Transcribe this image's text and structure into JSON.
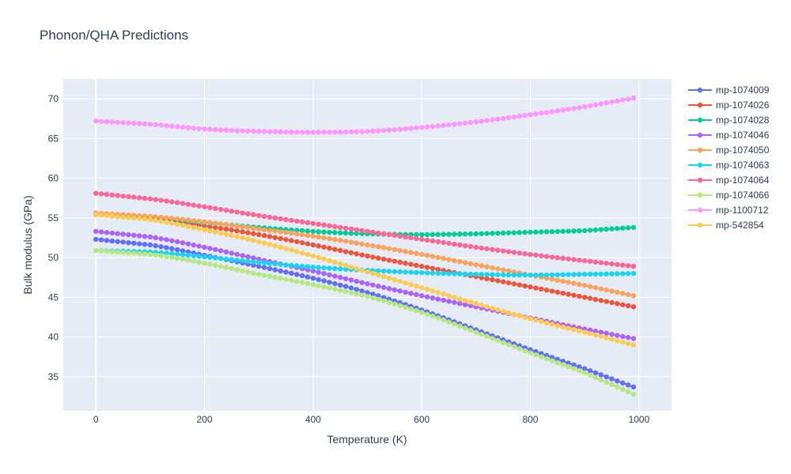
{
  "chart_data": {
    "type": "line",
    "title": "Phonon/QHA Predictions",
    "xlabel": "Temperature (K)",
    "ylabel": "Bulk modulus (GPa)",
    "xlim": [
      -60,
      1060
    ],
    "ylim": [
      30.7,
      72.5
    ],
    "xticks": [
      0,
      200,
      400,
      600,
      800,
      1000
    ],
    "yticks": [
      35,
      40,
      45,
      50,
      55,
      60,
      65,
      70
    ],
    "grid": true,
    "legend_position": "right",
    "x_sampling": {
      "start": 0,
      "end": 990,
      "step": 10
    },
    "plot_background": "#e5ecf6",
    "series": [
      {
        "name": "mp-1074009",
        "color": "#636efa",
        "points": [
          [
            0,
            52.3
          ],
          [
            100,
            51.6
          ],
          [
            200,
            50.3
          ],
          [
            300,
            48.9
          ],
          [
            400,
            47.4
          ],
          [
            500,
            45.6
          ],
          [
            600,
            43.4
          ],
          [
            700,
            40.9
          ],
          [
            800,
            38.4
          ],
          [
            900,
            36.0
          ],
          [
            990,
            33.7
          ]
        ]
      },
      {
        "name": "mp-1074026",
        "color": "#ef553b",
        "points": [
          [
            0,
            55.6
          ],
          [
            100,
            55.0
          ],
          [
            200,
            54.0
          ],
          [
            300,
            52.9
          ],
          [
            400,
            51.6
          ],
          [
            500,
            50.2
          ],
          [
            600,
            48.9
          ],
          [
            700,
            47.6
          ],
          [
            800,
            46.3
          ],
          [
            900,
            45.0
          ],
          [
            990,
            43.8
          ]
        ]
      },
      {
        "name": "mp-1074028",
        "color": "#00cc96",
        "points": [
          [
            0,
            55.4
          ],
          [
            100,
            55.1
          ],
          [
            200,
            54.4
          ],
          [
            300,
            53.8
          ],
          [
            400,
            53.3
          ],
          [
            500,
            53.0
          ],
          [
            600,
            52.9
          ],
          [
            700,
            53.0
          ],
          [
            800,
            53.2
          ],
          [
            900,
            53.4
          ],
          [
            990,
            53.8
          ]
        ]
      },
      {
        "name": "mp-1074046",
        "color": "#ab63fa",
        "points": [
          [
            0,
            53.3
          ],
          [
            100,
            52.6
          ],
          [
            200,
            51.3
          ],
          [
            300,
            49.8
          ],
          [
            400,
            48.3
          ],
          [
            500,
            46.7
          ],
          [
            600,
            45.2
          ],
          [
            700,
            43.8
          ],
          [
            800,
            42.4
          ],
          [
            900,
            41.0
          ],
          [
            990,
            39.8
          ]
        ]
      },
      {
        "name": "mp-1074050",
        "color": "#ffa15a",
        "points": [
          [
            0,
            55.6
          ],
          [
            100,
            55.2
          ],
          [
            200,
            54.5
          ],
          [
            300,
            53.6
          ],
          [
            400,
            52.7
          ],
          [
            500,
            51.6
          ],
          [
            600,
            50.4
          ],
          [
            700,
            49.1
          ],
          [
            800,
            47.8
          ],
          [
            900,
            46.5
          ],
          [
            990,
            45.2
          ]
        ]
      },
      {
        "name": "mp-1074063",
        "color": "#19d3f3",
        "points": [
          [
            0,
            50.9
          ],
          [
            100,
            50.7
          ],
          [
            200,
            50.1
          ],
          [
            300,
            49.4
          ],
          [
            400,
            48.8
          ],
          [
            500,
            48.4
          ],
          [
            600,
            48.1
          ],
          [
            700,
            47.9
          ],
          [
            800,
            47.8
          ],
          [
            900,
            47.9
          ],
          [
            990,
            48.0
          ]
        ]
      },
      {
        "name": "mp-1074064",
        "color": "#ff6692",
        "points": [
          [
            0,
            58.1
          ],
          [
            100,
            57.4
          ],
          [
            200,
            56.4
          ],
          [
            300,
            55.3
          ],
          [
            400,
            54.3
          ],
          [
            500,
            53.3
          ],
          [
            600,
            52.3
          ],
          [
            700,
            51.3
          ],
          [
            800,
            50.4
          ],
          [
            900,
            49.6
          ],
          [
            990,
            48.9
          ]
        ]
      },
      {
        "name": "mp-1074066",
        "color": "#b6e880",
        "points": [
          [
            0,
            50.9
          ],
          [
            100,
            50.4
          ],
          [
            200,
            49.3
          ],
          [
            300,
            47.9
          ],
          [
            400,
            46.6
          ],
          [
            500,
            45.1
          ],
          [
            600,
            43.1
          ],
          [
            700,
            40.6
          ],
          [
            800,
            38.0
          ],
          [
            900,
            35.5
          ],
          [
            990,
            32.8
          ]
        ]
      },
      {
        "name": "mp-1100712",
        "color": "#ff97ff",
        "points": [
          [
            0,
            67.2
          ],
          [
            100,
            66.8
          ],
          [
            200,
            66.2
          ],
          [
            300,
            65.9
          ],
          [
            400,
            65.8
          ],
          [
            500,
            65.9
          ],
          [
            600,
            66.4
          ],
          [
            700,
            67.1
          ],
          [
            800,
            68.0
          ],
          [
            900,
            69.0
          ],
          [
            990,
            70.1
          ]
        ]
      },
      {
        "name": "mp-542854",
        "color": "#fecb52",
        "points": [
          [
            0,
            55.4
          ],
          [
            100,
            54.8
          ],
          [
            200,
            53.5
          ],
          [
            300,
            52.0
          ],
          [
            400,
            50.2
          ],
          [
            500,
            48.2
          ],
          [
            600,
            46.2
          ],
          [
            700,
            44.2
          ],
          [
            800,
            42.3
          ],
          [
            900,
            40.6
          ],
          [
            990,
            39.0
          ]
        ]
      }
    ]
  }
}
